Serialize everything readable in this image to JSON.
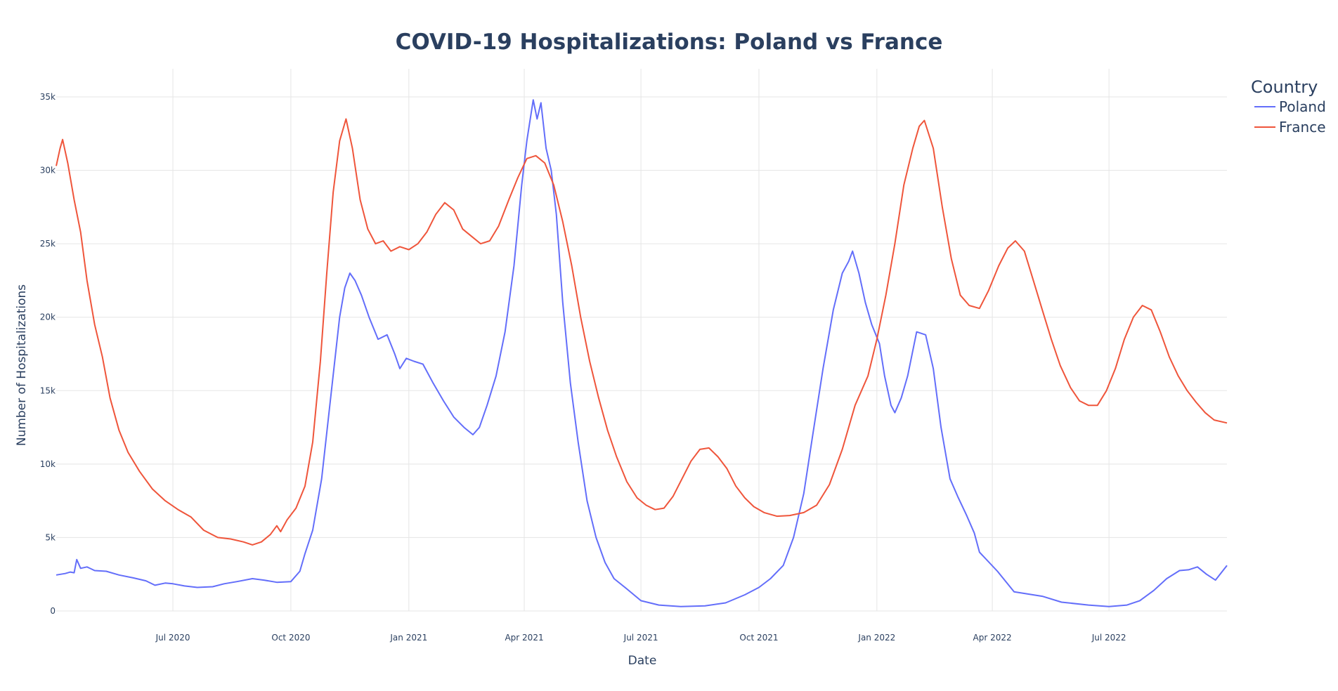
{
  "chart_data": {
    "type": "line",
    "title": "COVID-19 Hospitalizations: Poland vs France",
    "xlabel": "Date",
    "ylabel": "Number of Hospitalizations",
    "x_range": [
      "2020-04-01",
      "2022-10-01"
    ],
    "ylim": [
      0,
      35000
    ],
    "grid": true,
    "legend": {
      "title": "Country",
      "placement": "top-right"
    },
    "x_ticks": [
      {
        "date": "2020-07-01",
        "label": "Jul 2020"
      },
      {
        "date": "2020-10-01",
        "label": "Oct 2020"
      },
      {
        "date": "2021-01-01",
        "label": "Jan 2021"
      },
      {
        "date": "2021-04-01",
        "label": "Apr 2021"
      },
      {
        "date": "2021-07-01",
        "label": "Jul 2021"
      },
      {
        "date": "2021-10-01",
        "label": "Oct 2021"
      },
      {
        "date": "2022-01-01",
        "label": "Jan 2022"
      },
      {
        "date": "2022-04-01",
        "label": "Apr 2022"
      },
      {
        "date": "2022-07-01",
        "label": "Jul 2022"
      }
    ],
    "y_ticks": [
      {
        "value": 0,
        "label": "0"
      },
      {
        "value": 5000,
        "label": "5k"
      },
      {
        "value": 10000,
        "label": "10k"
      },
      {
        "value": 15000,
        "label": "15k"
      },
      {
        "value": 20000,
        "label": "20k"
      },
      {
        "value": 25000,
        "label": "25k"
      },
      {
        "value": 30000,
        "label": "30k"
      },
      {
        "value": 35000,
        "label": "35k"
      }
    ],
    "series": [
      {
        "name": "Poland",
        "color": "#636efa",
        "points": [
          [
            "2020-04-01",
            2450
          ],
          [
            "2020-04-08",
            2550
          ],
          [
            "2020-04-12",
            2650
          ],
          [
            "2020-04-15",
            2600
          ],
          [
            "2020-04-17",
            3500
          ],
          [
            "2020-04-20",
            2900
          ],
          [
            "2020-04-25",
            3000
          ],
          [
            "2020-05-01",
            2750
          ],
          [
            "2020-05-10",
            2700
          ],
          [
            "2020-05-20",
            2450
          ],
          [
            "2020-05-31",
            2250
          ],
          [
            "2020-06-10",
            2050
          ],
          [
            "2020-06-17",
            1750
          ],
          [
            "2020-06-25",
            1900
          ],
          [
            "2020-07-01",
            1850
          ],
          [
            "2020-07-10",
            1700
          ],
          [
            "2020-07-20",
            1600
          ],
          [
            "2020-08-01",
            1650
          ],
          [
            "2020-08-10",
            1850
          ],
          [
            "2020-08-20",
            2000
          ],
          [
            "2020-09-01",
            2200
          ],
          [
            "2020-09-10",
            2100
          ],
          [
            "2020-09-20",
            1950
          ],
          [
            "2020-10-01",
            2000
          ],
          [
            "2020-10-08",
            2700
          ],
          [
            "2020-10-12",
            3900
          ],
          [
            "2020-10-18",
            5500
          ],
          [
            "2020-10-25",
            9000
          ],
          [
            "2020-11-01",
            14500
          ],
          [
            "2020-11-08",
            20000
          ],
          [
            "2020-11-12",
            22000
          ],
          [
            "2020-11-16",
            23000
          ],
          [
            "2020-11-20",
            22500
          ],
          [
            "2020-11-25",
            21500
          ],
          [
            "2020-12-01",
            20000
          ],
          [
            "2020-12-08",
            18500
          ],
          [
            "2020-12-15",
            18800
          ],
          [
            "2020-12-21",
            17500
          ],
          [
            "2020-12-25",
            16500
          ],
          [
            "2020-12-30",
            17200
          ],
          [
            "2021-01-05",
            17000
          ],
          [
            "2021-01-12",
            16800
          ],
          [
            "2021-01-20",
            15500
          ],
          [
            "2021-01-28",
            14300
          ],
          [
            "2021-02-05",
            13200
          ],
          [
            "2021-02-13",
            12500
          ],
          [
            "2021-02-20",
            12000
          ],
          [
            "2021-02-25",
            12500
          ],
          [
            "2021-03-03",
            14000
          ],
          [
            "2021-03-10",
            16000
          ],
          [
            "2021-03-17",
            19000
          ],
          [
            "2021-03-24",
            23500
          ],
          [
            "2021-03-30",
            29000
          ],
          [
            "2021-04-03",
            32000
          ],
          [
            "2021-04-08",
            34800
          ],
          [
            "2021-04-11",
            33500
          ],
          [
            "2021-04-14",
            34600
          ],
          [
            "2021-04-18",
            31500
          ],
          [
            "2021-04-22",
            30000
          ],
          [
            "2021-04-26",
            27000
          ],
          [
            "2021-05-01",
            21000
          ],
          [
            "2021-05-07",
            15500
          ],
          [
            "2021-05-13",
            11500
          ],
          [
            "2021-05-20",
            7500
          ],
          [
            "2021-05-27",
            5000
          ],
          [
            "2021-06-03",
            3300
          ],
          [
            "2021-06-10",
            2200
          ],
          [
            "2021-06-20",
            1500
          ],
          [
            "2021-07-01",
            700
          ],
          [
            "2021-07-15",
            400
          ],
          [
            "2021-08-01",
            300
          ],
          [
            "2021-08-20",
            350
          ],
          [
            "2021-09-05",
            550
          ],
          [
            "2021-09-20",
            1100
          ],
          [
            "2021-10-01",
            1600
          ],
          [
            "2021-10-10",
            2200
          ],
          [
            "2021-10-20",
            3100
          ],
          [
            "2021-10-28",
            5000
          ],
          [
            "2021-11-05",
            8000
          ],
          [
            "2021-11-12",
            12000
          ],
          [
            "2021-11-20",
            16500
          ],
          [
            "2021-11-28",
            20500
          ],
          [
            "2021-12-05",
            23000
          ],
          [
            "2021-12-10",
            23800
          ],
          [
            "2021-12-13",
            24500
          ],
          [
            "2021-12-18",
            23000
          ],
          [
            "2021-12-23",
            21000
          ],
          [
            "2021-12-28",
            19500
          ],
          [
            "2022-01-03",
            18200
          ],
          [
            "2022-01-07",
            16000
          ],
          [
            "2022-01-12",
            14000
          ],
          [
            "2022-01-15",
            13500
          ],
          [
            "2022-01-20",
            14500
          ],
          [
            "2022-01-25",
            16000
          ],
          [
            "2022-02-01",
            19000
          ],
          [
            "2022-02-08",
            18800
          ],
          [
            "2022-02-14",
            16500
          ],
          [
            "2022-02-20",
            12500
          ],
          [
            "2022-02-27",
            9000
          ],
          [
            "2022-03-05",
            7800
          ],
          [
            "2022-03-12",
            6500
          ],
          [
            "2022-03-18",
            5300
          ],
          [
            "2022-03-22",
            4000
          ],
          [
            "2022-04-05",
            2700
          ],
          [
            "2022-04-18",
            1300
          ],
          [
            "2022-05-10",
            1000
          ],
          [
            "2022-05-25",
            600
          ],
          [
            "2022-06-15",
            400
          ],
          [
            "2022-07-01",
            300
          ],
          [
            "2022-07-15",
            400
          ],
          [
            "2022-07-25",
            700
          ],
          [
            "2022-08-05",
            1400
          ],
          [
            "2022-08-15",
            2200
          ],
          [
            "2022-08-25",
            2750
          ],
          [
            "2022-09-01",
            2800
          ],
          [
            "2022-09-08",
            3000
          ],
          [
            "2022-09-15",
            2500
          ],
          [
            "2022-09-22",
            2100
          ],
          [
            "2022-10-01",
            3100
          ]
        ]
      },
      {
        "name": "France",
        "color": "#ef553b",
        "points": [
          [
            "2020-04-01",
            30300
          ],
          [
            "2020-04-04",
            31500
          ],
          [
            "2020-04-06",
            32100
          ],
          [
            "2020-04-10",
            30500
          ],
          [
            "2020-04-15",
            28000
          ],
          [
            "2020-04-20",
            25800
          ],
          [
            "2020-04-25",
            22500
          ],
          [
            "2020-05-01",
            19500
          ],
          [
            "2020-05-07",
            17300
          ],
          [
            "2020-05-13",
            14500
          ],
          [
            "2020-05-20",
            12300
          ],
          [
            "2020-05-27",
            10800
          ],
          [
            "2020-06-05",
            9500
          ],
          [
            "2020-06-15",
            8300
          ],
          [
            "2020-06-25",
            7500
          ],
          [
            "2020-07-05",
            6900
          ],
          [
            "2020-07-15",
            6400
          ],
          [
            "2020-07-25",
            5500
          ],
          [
            "2020-08-05",
            5000
          ],
          [
            "2020-08-15",
            4900
          ],
          [
            "2020-08-25",
            4700
          ],
          [
            "2020-09-01",
            4500
          ],
          [
            "2020-09-08",
            4700
          ],
          [
            "2020-09-15",
            5200
          ],
          [
            "2020-09-20",
            5800
          ],
          [
            "2020-09-23",
            5400
          ],
          [
            "2020-09-28",
            6200
          ],
          [
            "2020-10-05",
            7000
          ],
          [
            "2020-10-12",
            8500
          ],
          [
            "2020-10-18",
            11500
          ],
          [
            "2020-10-24",
            17000
          ],
          [
            "2020-10-29",
            23000
          ],
          [
            "2020-11-03",
            28500
          ],
          [
            "2020-11-08",
            32000
          ],
          [
            "2020-11-13",
            33500
          ],
          [
            "2020-11-18",
            31500
          ],
          [
            "2020-11-24",
            28000
          ],
          [
            "2020-11-30",
            26000
          ],
          [
            "2020-12-06",
            25000
          ],
          [
            "2020-12-12",
            25200
          ],
          [
            "2020-12-18",
            24500
          ],
          [
            "2020-12-25",
            24800
          ],
          [
            "2021-01-01",
            24600
          ],
          [
            "2021-01-08",
            25000
          ],
          [
            "2021-01-15",
            25800
          ],
          [
            "2021-01-22",
            27000
          ],
          [
            "2021-01-29",
            27800
          ],
          [
            "2021-02-05",
            27300
          ],
          [
            "2021-02-12",
            26000
          ],
          [
            "2021-02-19",
            25500
          ],
          [
            "2021-02-26",
            25000
          ],
          [
            "2021-03-05",
            25200
          ],
          [
            "2021-03-12",
            26200
          ],
          [
            "2021-03-20",
            28000
          ],
          [
            "2021-03-27",
            29500
          ],
          [
            "2021-04-03",
            30800
          ],
          [
            "2021-04-10",
            31000
          ],
          [
            "2021-04-17",
            30500
          ],
          [
            "2021-04-24",
            29000
          ],
          [
            "2021-05-01",
            26500
          ],
          [
            "2021-05-08",
            23500
          ],
          [
            "2021-05-15",
            20000
          ],
          [
            "2021-05-22",
            17000
          ],
          [
            "2021-05-29",
            14500
          ],
          [
            "2021-06-05",
            12300
          ],
          [
            "2021-06-12",
            10500
          ],
          [
            "2021-06-20",
            8800
          ],
          [
            "2021-06-28",
            7700
          ],
          [
            "2021-07-05",
            7200
          ],
          [
            "2021-07-12",
            6900
          ],
          [
            "2021-07-19",
            7000
          ],
          [
            "2021-07-26",
            7800
          ],
          [
            "2021-08-02",
            9000
          ],
          [
            "2021-08-09",
            10200
          ],
          [
            "2021-08-16",
            11000
          ],
          [
            "2021-08-23",
            11100
          ],
          [
            "2021-08-30",
            10500
          ],
          [
            "2021-09-06",
            9700
          ],
          [
            "2021-09-13",
            8500
          ],
          [
            "2021-09-20",
            7700
          ],
          [
            "2021-09-27",
            7100
          ],
          [
            "2021-10-05",
            6700
          ],
          [
            "2021-10-15",
            6450
          ],
          [
            "2021-10-25",
            6500
          ],
          [
            "2021-11-05",
            6700
          ],
          [
            "2021-11-15",
            7200
          ],
          [
            "2021-11-25",
            8600
          ],
          [
            "2021-12-05",
            11000
          ],
          [
            "2021-12-15",
            14000
          ],
          [
            "2021-12-25",
            16000
          ],
          [
            "2022-01-01",
            18500
          ],
          [
            "2022-01-08",
            21500
          ],
          [
            "2022-01-15",
            25000
          ],
          [
            "2022-01-22",
            29000
          ],
          [
            "2022-01-29",
            31500
          ],
          [
            "2022-02-03",
            33000
          ],
          [
            "2022-02-07",
            33400
          ],
          [
            "2022-02-14",
            31500
          ],
          [
            "2022-02-21",
            27500
          ],
          [
            "2022-02-28",
            24000
          ],
          [
            "2022-03-07",
            21500
          ],
          [
            "2022-03-14",
            20800
          ],
          [
            "2022-03-22",
            20600
          ],
          [
            "2022-03-29",
            21800
          ],
          [
            "2022-04-06",
            23500
          ],
          [
            "2022-04-13",
            24700
          ],
          [
            "2022-04-19",
            25200
          ],
          [
            "2022-04-26",
            24500
          ],
          [
            "2022-05-03",
            22500
          ],
          [
            "2022-05-10",
            20500
          ],
          [
            "2022-05-17",
            18500
          ],
          [
            "2022-05-24",
            16700
          ],
          [
            "2022-06-01",
            15200
          ],
          [
            "2022-06-08",
            14300
          ],
          [
            "2022-06-15",
            14000
          ],
          [
            "2022-06-22",
            14000
          ],
          [
            "2022-06-29",
            15000
          ],
          [
            "2022-07-06",
            16500
          ],
          [
            "2022-07-13",
            18500
          ],
          [
            "2022-07-20",
            20000
          ],
          [
            "2022-07-27",
            20800
          ],
          [
            "2022-08-03",
            20500
          ],
          [
            "2022-08-10",
            19000
          ],
          [
            "2022-08-17",
            17300
          ],
          [
            "2022-08-24",
            16000
          ],
          [
            "2022-08-31",
            15000
          ],
          [
            "2022-09-07",
            14200
          ],
          [
            "2022-09-14",
            13500
          ],
          [
            "2022-09-21",
            13000
          ],
          [
            "2022-10-01",
            12800
          ]
        ]
      }
    ]
  }
}
